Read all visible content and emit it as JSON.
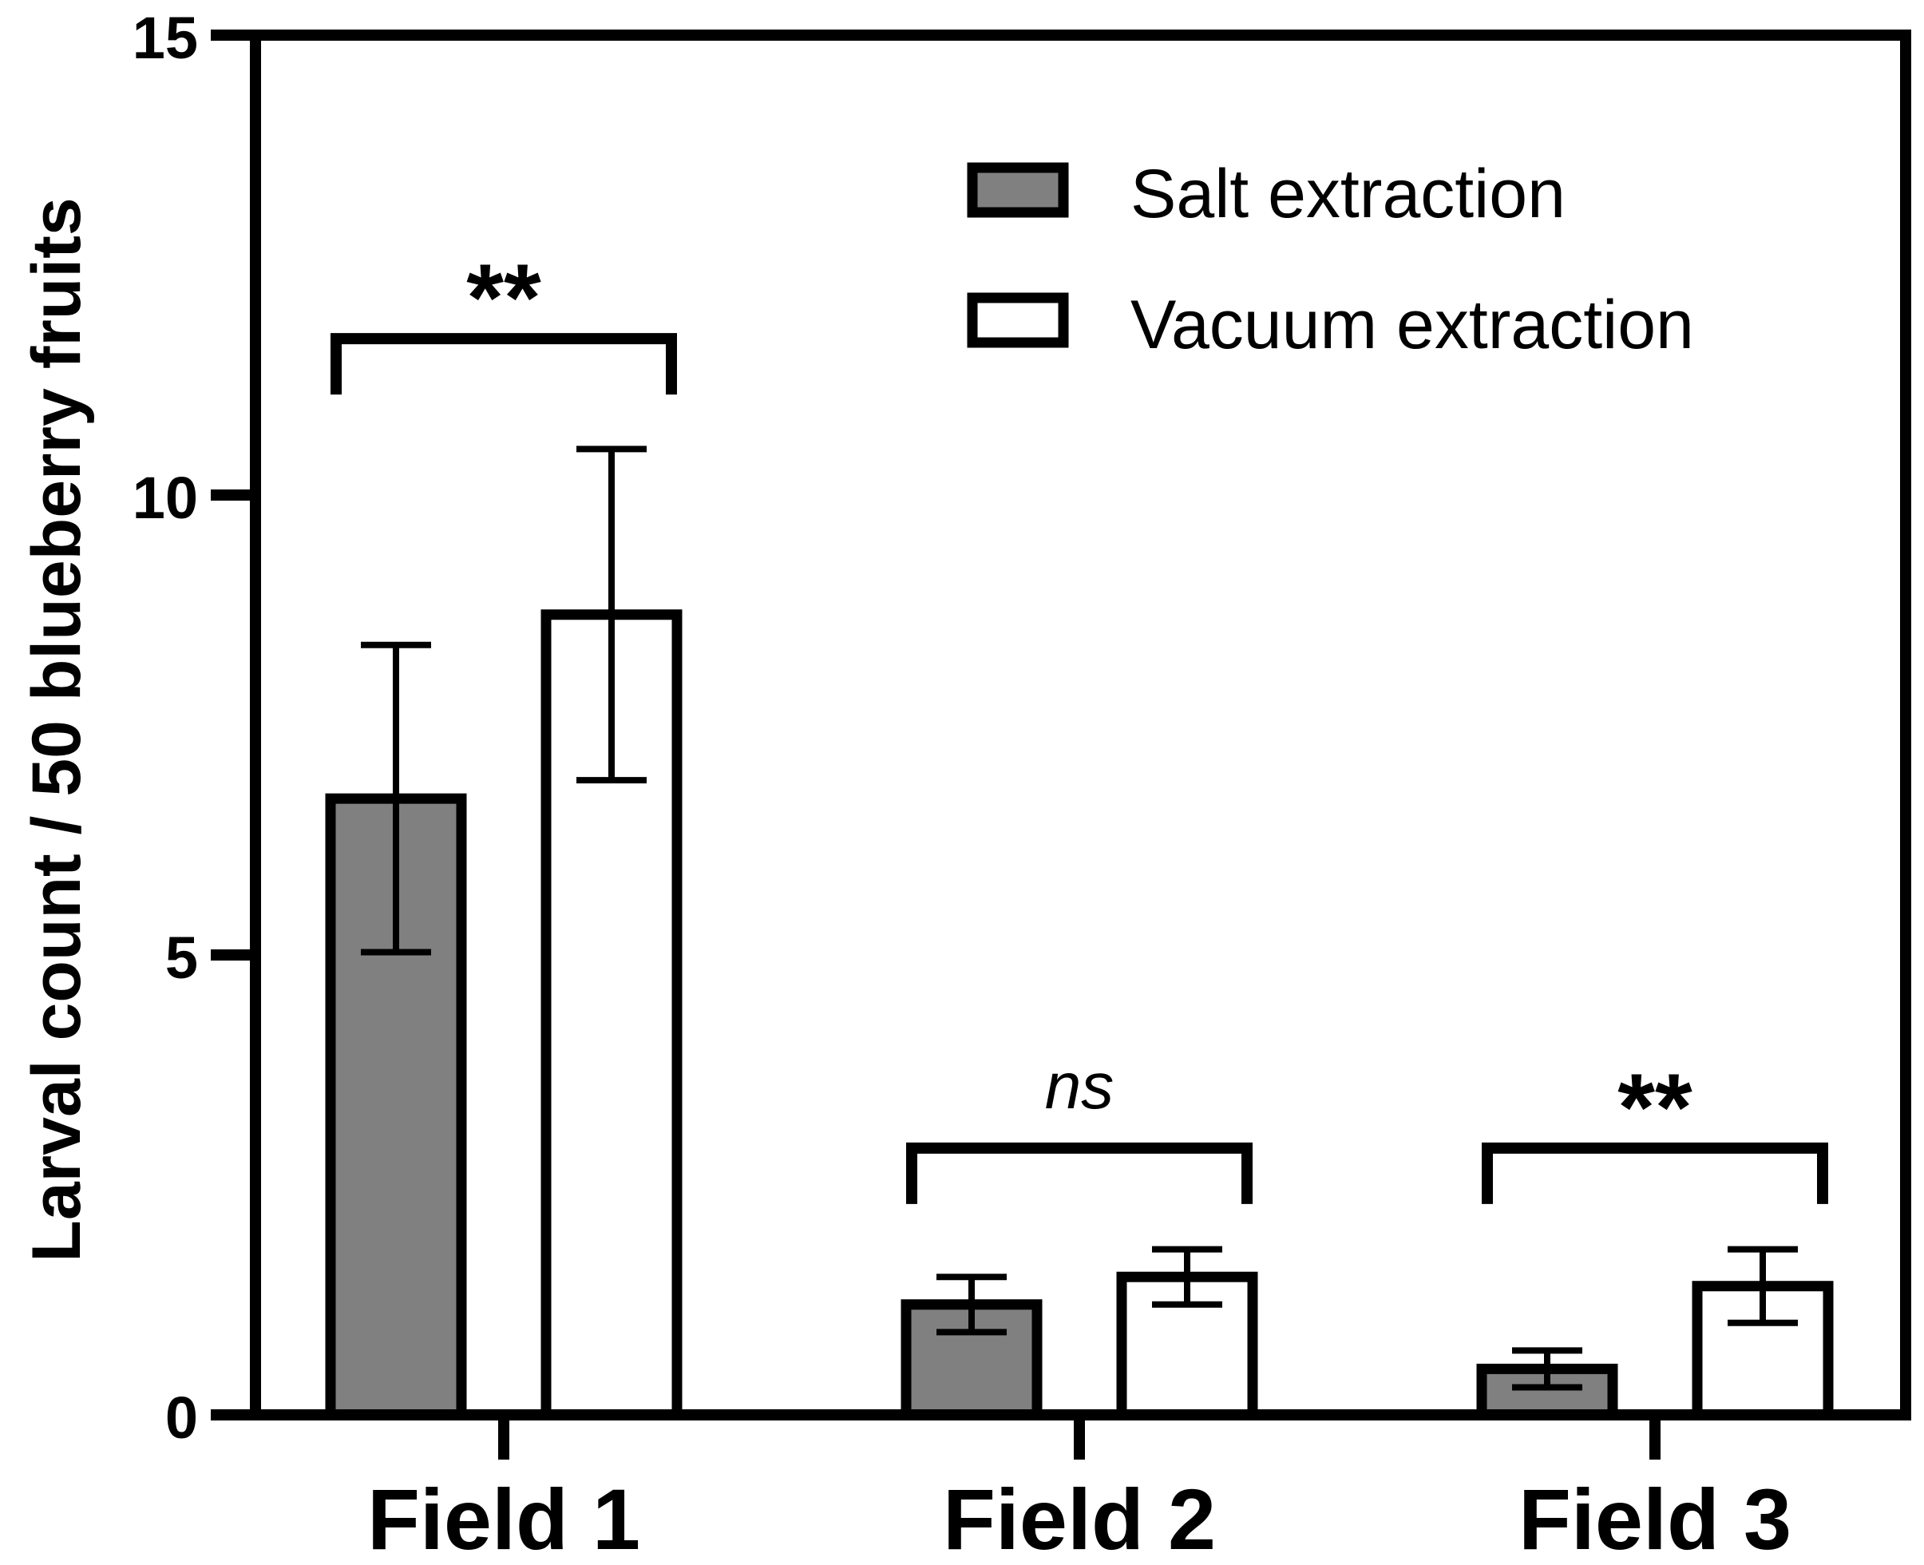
{
  "chart_data": {
    "type": "bar",
    "title": "",
    "xlabel": "",
    "ylabel": "Larval count / 50 blueberry fruits",
    "ylim": [
      0,
      15
    ],
    "yticks": [
      0,
      5,
      10,
      15
    ],
    "categories": [
      "Field 1",
      "Field 2",
      "Field 3"
    ],
    "series": [
      {
        "name": "Salt extraction",
        "color": "#808080",
        "values": [
          6.7,
          1.2,
          0.5
        ],
        "error": [
          1.67,
          0.3,
          0.2
        ]
      },
      {
        "name": "Vacuum extraction",
        "color": "#ffffff",
        "values": [
          8.7,
          1.5,
          1.4
        ],
        "error": [
          1.8,
          0.3,
          0.4
        ]
      }
    ],
    "significance": [
      {
        "category": "Field 1",
        "label": "**",
        "italic": false,
        "y": 11.7
      },
      {
        "category": "Field 2",
        "label": "ns",
        "italic": true,
        "y": 2.9
      },
      {
        "category": "Field 3",
        "label": "**",
        "italic": false,
        "y": 2.9
      }
    ],
    "legend_position": "top-right",
    "grid": false
  }
}
